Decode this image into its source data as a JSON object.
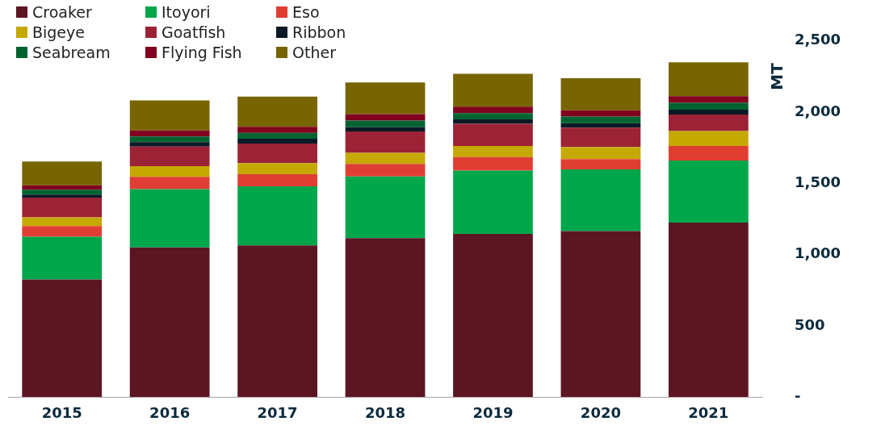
{
  "chart_data": {
    "type": "bar",
    "stacked": true,
    "ylabel": "MT",
    "legend": "top left",
    "grid": false,
    "categories": [
      "2015",
      "2016",
      "2017",
      "2018",
      "2019",
      "2020",
      "2021"
    ],
    "ylim": [
      0,
      2500
    ],
    "yticks": [
      {
        "value": 0,
        "label": "-"
      },
      500,
      {
        "value": 1000,
        "label": "1,000"
      },
      {
        "value": 1500,
        "label": "1,500"
      },
      {
        "value": 2000,
        "label": "2,000"
      },
      {
        "value": 2500,
        "label": "2,500"
      }
    ],
    "series": [
      {
        "name": "Croaker",
        "color": "#5c1522",
        "values": [
          825,
          1050,
          1065,
          1115,
          1145,
          1165,
          1225
        ]
      },
      {
        "name": "Itoyori",
        "color": "#00a64a",
        "values": [
          300,
          410,
          415,
          434,
          445,
          433,
          435
        ]
      },
      {
        "name": "Eso",
        "color": "#e03e33",
        "values": [
          75,
          86,
          84,
          87,
          95,
          73,
          103
        ]
      },
      {
        "name": "Bigeye",
        "color": "#c5a800",
        "values": [
          62,
          75,
          78,
          78,
          78,
          84,
          105
        ]
      },
      {
        "name": "Goatfish",
        "color": "#9b2335",
        "values": [
          138,
          138,
          137,
          150,
          155,
          137,
          116
        ]
      },
      {
        "name": "Ribbon",
        "color": "#0b1a26",
        "values": [
          22,
          31,
          34,
          30,
          31,
          31,
          34
        ]
      },
      {
        "name": "Seabream",
        "color": "#006330",
        "values": [
          34,
          39,
          41,
          47,
          45,
          47,
          48
        ]
      },
      {
        "name": "Flying Fish",
        "color": "#80001e",
        "values": [
          31,
          43,
          43,
          45,
          45,
          43,
          47
        ]
      },
      {
        "name": "Other",
        "color": "#786400",
        "values": [
          166,
          211,
          213,
          222,
          230,
          226,
          237
        ]
      }
    ]
  }
}
